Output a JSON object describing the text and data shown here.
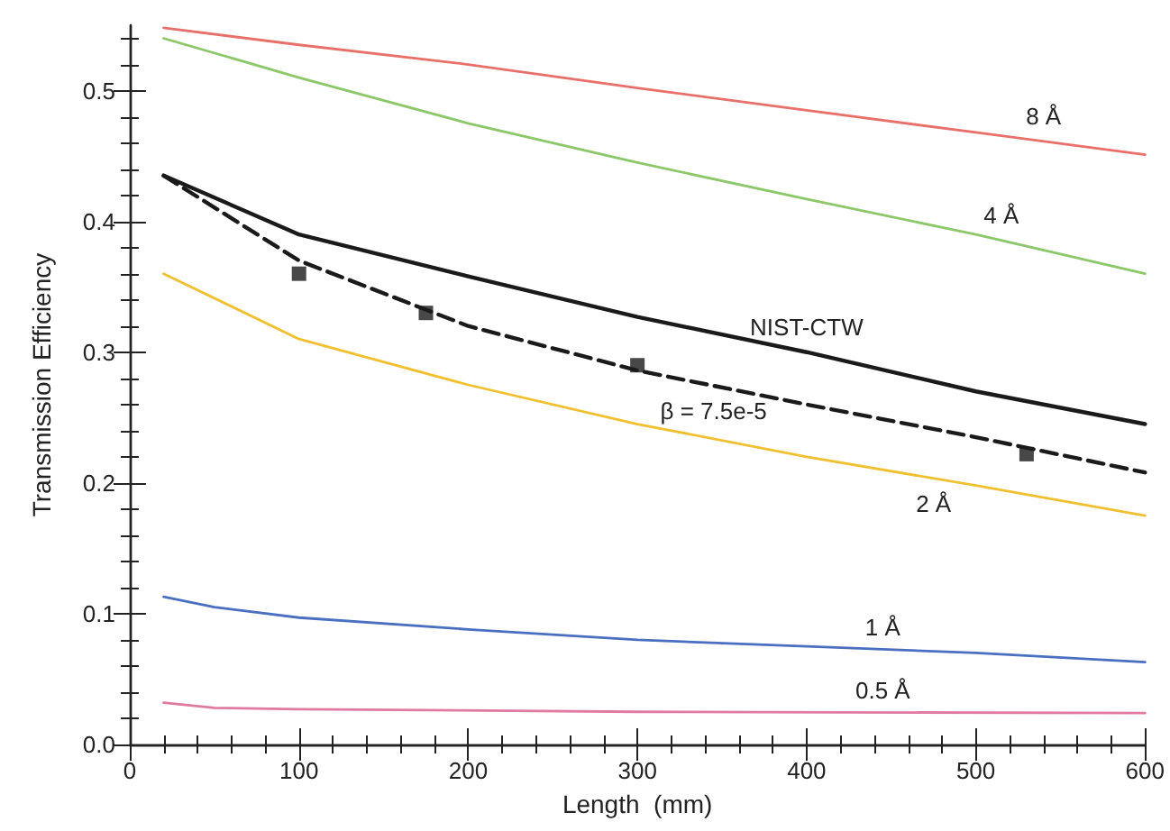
{
  "chart_data": {
    "type": "line",
    "xlabel": "Length  (mm)",
    "ylabel": "Transmission Efficiency",
    "xlim": [
      0,
      600
    ],
    "xticks": [
      0,
      100,
      200,
      300,
      400,
      500,
      600
    ],
    "ylim": [
      0,
      0.55
    ],
    "yticks": [
      {
        "value": 0,
        "label": "0.0"
      },
      0.1,
      0.2,
      0.3,
      0.4,
      0.5
    ],
    "marker": "none",
    "line_style": "solid",
    "series": [
      {
        "name": "8 Å",
        "color": "#e8706a",
        "x": [
          20,
          100,
          200,
          300,
          400,
          500,
          600
        ],
        "values": [
          0.548,
          0.535,
          0.52,
          0.502,
          0.485,
          0.468,
          0.451
        ]
      },
      {
        "name": "4 Å",
        "color": "#8cc76a",
        "x": [
          20,
          100,
          200,
          300,
          400,
          500,
          600
        ],
        "values": [
          0.54,
          0.51,
          0.475,
          0.445,
          0.417,
          0.39,
          0.36
        ]
      },
      {
        "name": "NIST-CTW",
        "color": "#1a1a1a",
        "x": [
          20,
          100,
          200,
          300,
          400,
          500,
          600
        ],
        "values": [
          0.435,
          0.39,
          0.358,
          0.327,
          0.3,
          0.27,
          0.245
        ]
      },
      {
        "name": "β = 7.5e-5",
        "color": "#1a1a1a",
        "line_style": "dashed",
        "x": [
          20,
          100,
          200,
          300,
          400,
          500,
          600
        ],
        "values": [
          0.435,
          0.37,
          0.32,
          0.286,
          0.26,
          0.235,
          0.208
        ]
      },
      {
        "type": "scatter",
        "marker": "square",
        "color": "#1a1a1a",
        "x": [
          100,
          175,
          300,
          530
        ],
        "values": [
          0.36,
          0.33,
          0.29,
          0.222
        ]
      },
      {
        "name": "2 Å",
        "color": "#f0c030",
        "x": [
          20,
          100,
          200,
          300,
          400,
          500,
          600
        ],
        "values": [
          0.36,
          0.31,
          0.275,
          0.245,
          0.22,
          0.198,
          0.175
        ]
      },
      {
        "name": "1 Å",
        "color": "#4a6fc0",
        "x": [
          20,
          50,
          100,
          200,
          300,
          400,
          500,
          600
        ],
        "values": [
          0.113,
          0.105,
          0.097,
          0.088,
          0.08,
          0.075,
          0.07,
          0.063
        ]
      },
      {
        "name": "0.5 Å",
        "color": "#e07aa0",
        "x": [
          20,
          50,
          100,
          300,
          600
        ],
        "values": [
          0.032,
          0.028,
          0.027,
          0.025,
          0.024
        ]
      }
    ]
  }
}
